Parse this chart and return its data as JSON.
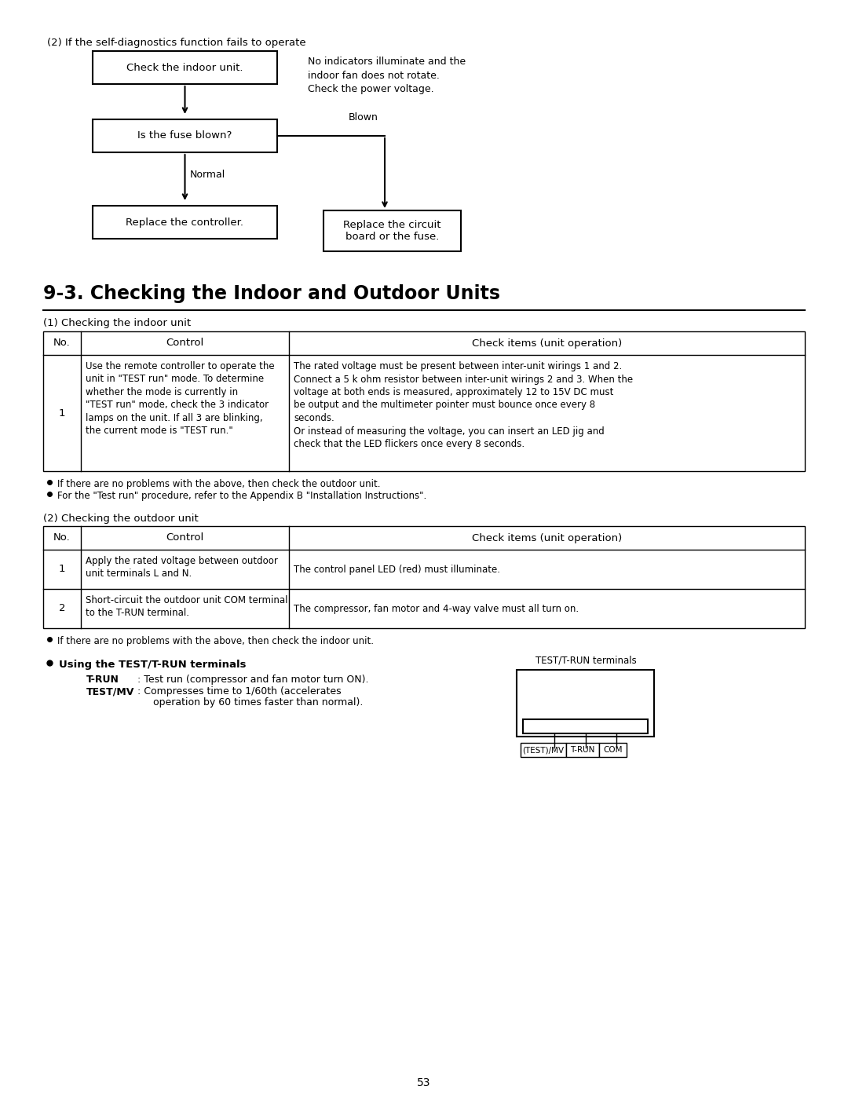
{
  "bg_color": "#ffffff",
  "page_number": "53",
  "section_title": "9-3. Checking the Indoor and Outdoor Units",
  "flowchart_label": "(2) If the self-diagnostics function fails to operate",
  "box1_text": "Check the indoor unit.",
  "box2_text": "Is the fuse blown?",
  "box3_text": "Replace the controller.",
  "box4_text": "Replace the circuit\nboard or the fuse.",
  "note_right": "No indicators illuminate and the\nindoor fan does not rotate.\nCheck the power voltage.",
  "label_blown": "Blown",
  "label_normal": "Normal",
  "indoor_section_subtitle": "(1) Checking the indoor unit",
  "indoor_table_header": [
    "No.",
    "Control",
    "Check items (unit operation)"
  ],
  "indoor_table_row1_no": "1",
  "indoor_table_row1_control": "Use the remote controller to operate the\nunit in \"TEST run\" mode. To determine\nwhether the mode is currently in\n\"TEST run\" mode, check the 3 indicator\nlamps on the unit. If all 3 are blinking,\nthe current mode is \"TEST run.\"",
  "indoor_table_row1_check": "The rated voltage must be present between inter-unit wirings 1 and 2.\nConnect a 5 k ohm resistor between inter-unit wirings 2 and 3. When the\nvoltage at both ends is measured, approximately 12 to 15V DC must\nbe output and the multimeter pointer must bounce once every 8\nseconds.\nOr instead of measuring the voltage, you can insert an LED jig and\ncheck that the LED flickers once every 8 seconds.",
  "bullet_notes_indoor": [
    "If there are no problems with the above, then check the outdoor unit.",
    "For the \"Test run\" procedure, refer to the Appendix B \"Installation Instructions\"."
  ],
  "outdoor_section_title": "(2) Checking the outdoor unit",
  "outdoor_table_header": [
    "No.",
    "Control",
    "Check items (unit operation)"
  ],
  "outdoor_table_rows": [
    [
      "1",
      "Apply the rated voltage between outdoor\nunit terminals L and N.",
      "The control panel LED (red) must illuminate."
    ],
    [
      "2",
      "Short-circuit the outdoor unit COM terminal\nto the T-RUN terminal.",
      "The compressor, fan motor and 4-way valve must all turn on."
    ]
  ],
  "bullet_notes_outdoor": [
    "If there are no problems with the above, then check the indoor unit."
  ],
  "test_run_title": "Using the TEST/T-RUN terminals",
  "terminal_label": "TEST/T-RUN terminals",
  "terminal_labels_bottom": [
    "(TEST)/MV",
    "T-RUN",
    "COM"
  ]
}
